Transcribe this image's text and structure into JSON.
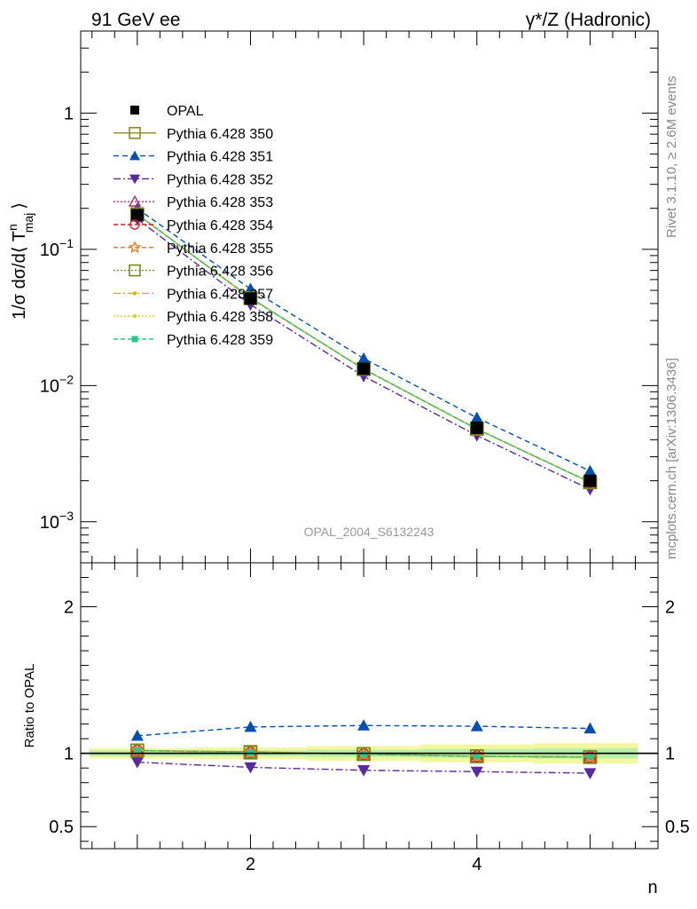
{
  "header": {
    "left": "91 GeV ee",
    "right": "γ*/Z (Hadronic)"
  },
  "side_labels": {
    "rivet": "Rivet 3.1.10, ≥ 2.6M events",
    "mcplots": "mcplots.cern.ch [arXiv:1306.3436]"
  },
  "watermark": "OPAL_2004_S6132243",
  "chart_data": {
    "type": "line",
    "x": [
      1,
      2,
      3,
      4,
      5
    ],
    "xlim": [
      0.5,
      5.6
    ],
    "xlabel": "n",
    "x_ticks": [
      {
        "value": 2,
        "label": "2"
      },
      {
        "value": 4,
        "label": "4"
      }
    ],
    "main": {
      "ylabel_parts": {
        "prefix": "1/σ dσ/d⟨ T",
        "sup": "n",
        "sub": "maj",
        "suffix": "⟩"
      },
      "yscale": "log",
      "ylim": [
        0.0005,
        4.0
      ],
      "y_ticks": [
        {
          "value": 1,
          "base": "1",
          "exp": ""
        },
        {
          "value": 0.1,
          "base": "10",
          "exp": "−1"
        },
        {
          "value": 0.01,
          "base": "10",
          "exp": "−2"
        },
        {
          "value": 0.001,
          "base": "10",
          "exp": "−3"
        }
      ],
      "legend_position": "top-left"
    },
    "ratio": {
      "ylabel": "Ratio to OPAL",
      "ylim": [
        0.35,
        2.3
      ],
      "y_ticks": [
        {
          "value": 2,
          "label": "2"
        },
        {
          "value": 1,
          "label": "1"
        },
        {
          "value": 0.5,
          "label": "0.5"
        }
      ],
      "band": {
        "inner": [
          0.02,
          0.02,
          0.025,
          0.03,
          0.035
        ],
        "outer": [
          0.035,
          0.04,
          0.05,
          0.06,
          0.07
        ]
      }
    },
    "series": [
      {
        "name": "OPAL",
        "values": [
          0.178,
          0.0435,
          0.0133,
          0.0049,
          0.002
        ],
        "color": "#000000",
        "marker": "square-filled",
        "dash": "none",
        "kind": "data"
      },
      {
        "name": "Pythia 6.428 350",
        "values": [
          0.181,
          0.044,
          0.0132,
          0.0048,
          0.00195
        ],
        "ratio": [
          1.02,
          1.01,
          0.995,
          0.98,
          0.975
        ],
        "color": "#8c8c1a",
        "marker": "square-open",
        "dash": "solid"
      },
      {
        "name": "Pythia 6.428 351",
        "values": [
          0.199,
          0.0512,
          0.0158,
          0.0058,
          0.00236
        ],
        "ratio": [
          1.12,
          1.18,
          1.19,
          1.185,
          1.17
        ],
        "color": "#0050b4",
        "marker": "triangle-up-filled",
        "dash": "6,4"
      },
      {
        "name": "Pythia 6.428 352",
        "values": [
          0.167,
          0.0393,
          0.0117,
          0.0043,
          0.00173
        ],
        "ratio": [
          0.94,
          0.905,
          0.885,
          0.875,
          0.865
        ],
        "color": "#5a28a0",
        "marker": "triangle-down-filled",
        "dash": "8,3,2,3"
      },
      {
        "name": "Pythia 6.428 353",
        "values": [
          0.181,
          0.0438,
          0.0132,
          0.0048,
          0.00195
        ],
        "ratio": [
          1.02,
          1.005,
          0.995,
          0.98,
          0.975
        ],
        "color": "#b4286e",
        "marker": "triangle-up-open",
        "dash": "2,2"
      },
      {
        "name": "Pythia 6.428 354",
        "values": [
          0.181,
          0.0438,
          0.0132,
          0.0048,
          0.00195
        ],
        "ratio": [
          1.02,
          1.005,
          0.995,
          0.98,
          0.975
        ],
        "color": "#dc1e28",
        "marker": "circle-open",
        "dash": "5,3"
      },
      {
        "name": "Pythia 6.428 355",
        "values": [
          0.181,
          0.0438,
          0.0132,
          0.0048,
          0.00195
        ],
        "ratio": [
          1.02,
          1.005,
          0.995,
          0.98,
          0.975
        ],
        "color": "#f07814",
        "marker": "star-open",
        "dash": "5,3"
      },
      {
        "name": "Pythia 6.428 356",
        "values": [
          0.181,
          0.0438,
          0.0132,
          0.0048,
          0.00195
        ],
        "ratio": [
          1.02,
          1.005,
          0.995,
          0.98,
          0.975
        ],
        "color": "#788c14",
        "marker": "square-open",
        "dash": "2,2"
      },
      {
        "name": "Pythia 6.428 357",
        "values": [
          0.181,
          0.0438,
          0.0132,
          0.0048,
          0.00195
        ],
        "ratio": [
          1.02,
          1.005,
          0.995,
          0.98,
          0.975
        ],
        "color": "#d2b414",
        "marker": "dot",
        "dash": "8,3,2,3"
      },
      {
        "name": "Pythia 6.428 358",
        "values": [
          0.181,
          0.0438,
          0.0132,
          0.0048,
          0.00195
        ],
        "ratio": [
          1.02,
          1.005,
          0.995,
          0.98,
          0.975
        ],
        "color": "#c8dc28",
        "marker": "dot",
        "dash": "2,2"
      },
      {
        "name": "Pythia 6.428 359",
        "values": [
          0.181,
          0.0438,
          0.0132,
          0.0048,
          0.00195
        ],
        "ratio": [
          1.02,
          1.005,
          0.995,
          0.98,
          0.975
        ],
        "color": "#28c88c",
        "marker": "square-small-filled",
        "dash": "5,3"
      }
    ]
  }
}
